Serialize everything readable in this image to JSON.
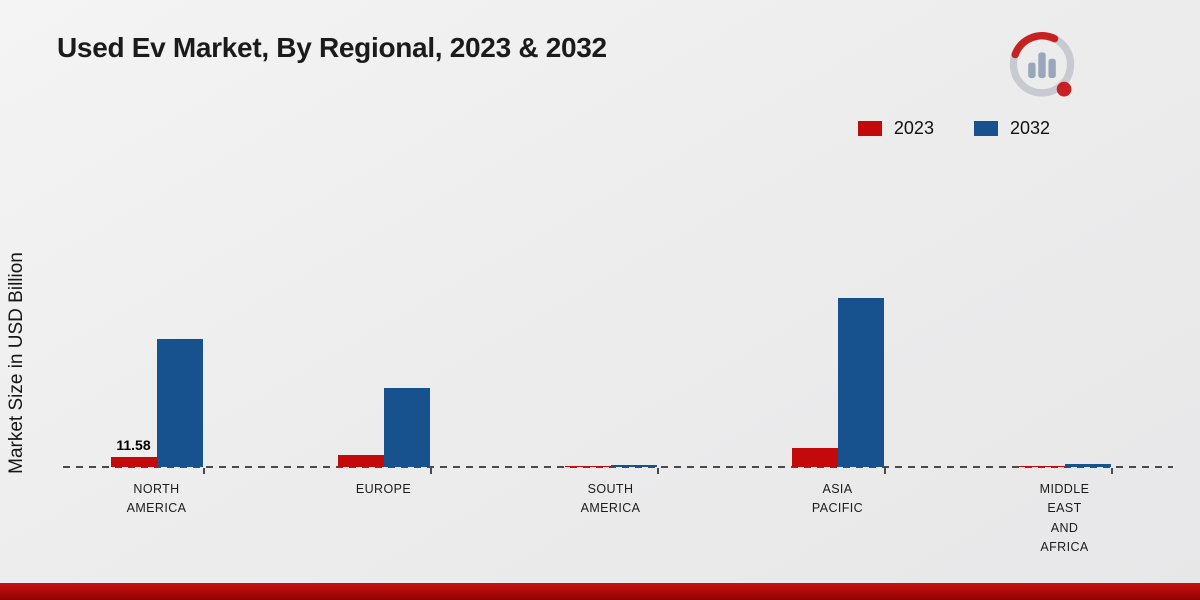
{
  "page": {
    "title": "Used Ev Market, By Regional, 2023 & 2032",
    "brand": "market-research-logo"
  },
  "chart_data": {
    "type": "bar",
    "title": "Used Ev Market, By Regional, 2023 & 2032",
    "xlabel": "",
    "ylabel": "Market Size in USD Billion",
    "categories": [
      "NORTH AMERICA",
      "EUROPE",
      "SOUTH AMERICA",
      "ASIA PACIFIC",
      "MIDDLE EAST AND AFRICA"
    ],
    "series": [
      {
        "name": "2023",
        "color": "#c30909",
        "values": [
          11.58,
          14.2,
          0.9,
          22.5,
          1.2
        ]
      },
      {
        "name": "2032",
        "color": "#17528f",
        "values": [
          148.0,
          91.0,
          2.8,
          196.0,
          4.0
        ]
      }
    ],
    "annotations": [
      {
        "category_index": 0,
        "series_index": 0,
        "text": "11.58"
      }
    ],
    "ylim": [
      0,
      220
    ],
    "grid": false,
    "baseline_style": "dashed",
    "legend_position": "top-right",
    "accent_colors": {
      "footer_band": "#a30707",
      "axis": "#4a4a4a"
    }
  }
}
